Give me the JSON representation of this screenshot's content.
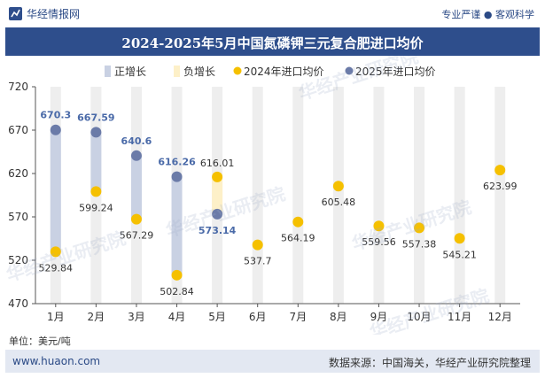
{
  "header": {
    "brand": "华经情报网",
    "slogan": "专业严谨 ● 客观科学"
  },
  "chart_data": {
    "type": "line",
    "title": "2024-2025年5月中国氮磷钾三元复合肥进口均价",
    "xlabel": "",
    "ylabel": "单位：美元/吨",
    "ylim": [
      470,
      720
    ],
    "yticks": [
      470,
      520,
      570,
      620,
      670,
      720
    ],
    "categories": [
      "1月",
      "2月",
      "3月",
      "4月",
      "5月",
      "6月",
      "7月",
      "8月",
      "9月",
      "10月",
      "11月",
      "12月"
    ],
    "legend": [
      "正增长",
      "负增长",
      "2024年进口均价",
      "2025年进口均价"
    ],
    "series": [
      {
        "name": "2024年进口均价",
        "color": "#f5c000",
        "values": [
          529.84,
          599.24,
          567.29,
          502.84,
          616.01,
          537.7,
          564.19,
          605.48,
          559.56,
          557.38,
          545.21,
          623.99
        ]
      },
      {
        "name": "2025年进口均价",
        "color": "#6b7ba8",
        "values": [
          670.3,
          667.59,
          640.6,
          616.26,
          573.14,
          null,
          null,
          null,
          null,
          null,
          null,
          null
        ]
      }
    ],
    "colors": {
      "positive": "#c9d1e3",
      "negative": "#fdf0c8",
      "column": "#eeeeee",
      "label_2025": "#4a6aa8",
      "label_2024": "#333333"
    }
  },
  "footer": {
    "site": "www.huaon.com",
    "source": "数据来源：中国海关，华经产业研究院整理"
  },
  "watermark": "华经产业研究院"
}
